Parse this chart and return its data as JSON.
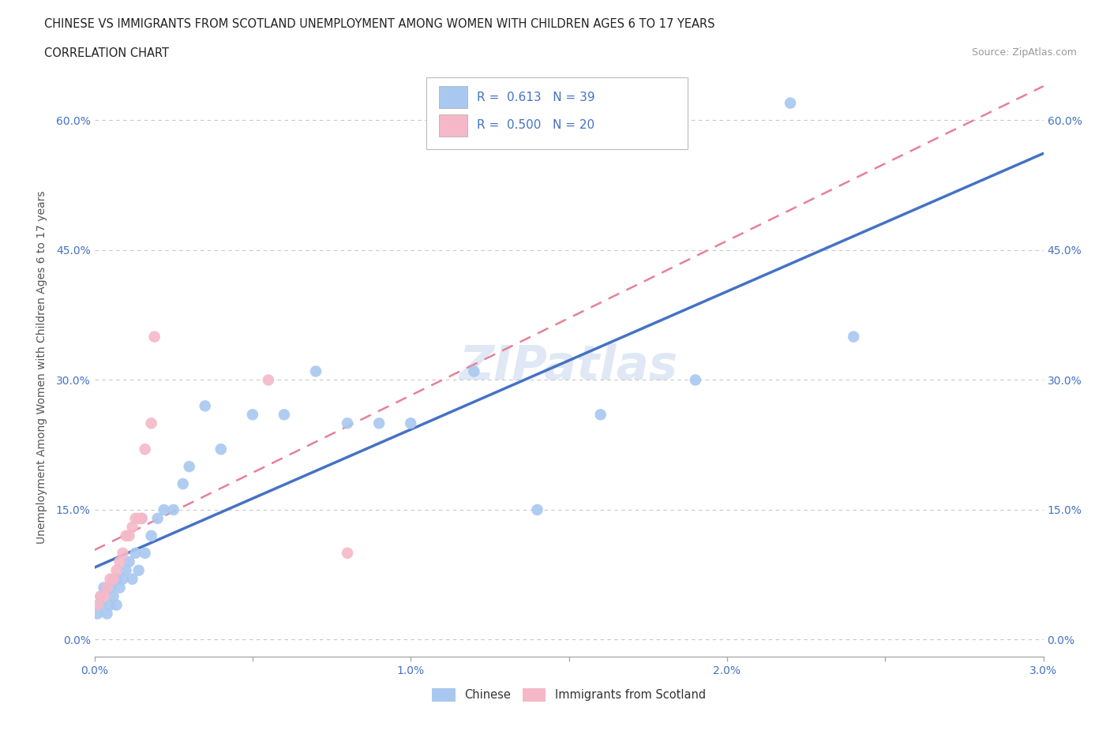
{
  "title_line1": "CHINESE VS IMMIGRANTS FROM SCOTLAND UNEMPLOYMENT AMONG WOMEN WITH CHILDREN AGES 6 TO 17 YEARS",
  "title_line2": "CORRELATION CHART",
  "source_text": "Source: ZipAtlas.com",
  "ylabel": "Unemployment Among Women with Children Ages 6 to 17 years",
  "xlim": [
    0.0,
    0.03
  ],
  "ylim": [
    -0.02,
    0.65
  ],
  "ytick_labels": [
    "0.0%",
    "15.0%",
    "30.0%",
    "45.0%",
    "60.0%"
  ],
  "ytick_values": [
    0.0,
    0.15,
    0.3,
    0.45,
    0.6
  ],
  "xtick_labels": [
    "0.0%",
    "",
    "1.0%",
    "",
    "2.0%",
    "",
    "3.0%"
  ],
  "xtick_values": [
    0.0,
    0.005,
    0.01,
    0.015,
    0.02,
    0.025,
    0.03
  ],
  "chinese_color": "#A8C8F0",
  "scotland_color": "#F5B8C8",
  "chinese_line_color": "#4472C4",
  "scotland_line_color": "#E88098",
  "background_color": "#FFFFFF",
  "grid_color": "#C8C8C8",
  "legend_R1": "R =  0.613",
  "legend_N1": "N = 39",
  "legend_R2": "R =  0.500",
  "legend_N2": "N = 20",
  "legend_label1": "Chinese",
  "legend_label2": "Immigrants from Scotland",
  "watermark": "ZIPatlas",
  "chinese_x": [
    0.0001,
    0.0002,
    0.0002,
    0.0003,
    0.0004,
    0.0005,
    0.0005,
    0.0006,
    0.0007,
    0.0007,
    0.0008,
    0.0009,
    0.001,
    0.0011,
    0.0012,
    0.0013,
    0.0014,
    0.0015,
    0.0016,
    0.0018,
    0.002,
    0.0022,
    0.0025,
    0.0028,
    0.003,
    0.0035,
    0.004,
    0.005,
    0.006,
    0.007,
    0.008,
    0.009,
    0.01,
    0.012,
    0.014,
    0.016,
    0.019,
    0.022,
    0.024
  ],
  "chinese_y": [
    0.03,
    0.04,
    0.05,
    0.06,
    0.03,
    0.04,
    0.06,
    0.05,
    0.04,
    0.07,
    0.06,
    0.07,
    0.08,
    0.09,
    0.07,
    0.1,
    0.08,
    0.14,
    0.1,
    0.12,
    0.14,
    0.15,
    0.15,
    0.18,
    0.2,
    0.27,
    0.22,
    0.26,
    0.26,
    0.31,
    0.25,
    0.25,
    0.25,
    0.31,
    0.15,
    0.26,
    0.3,
    0.62,
    0.35
  ],
  "scotland_x": [
    0.0001,
    0.0002,
    0.0003,
    0.0004,
    0.0005,
    0.0006,
    0.0007,
    0.0008,
    0.0009,
    0.001,
    0.0011,
    0.0012,
    0.0013,
    0.0014,
    0.0015,
    0.0016,
    0.0018,
    0.0019,
    0.0055,
    0.008
  ],
  "scotland_y": [
    0.04,
    0.05,
    0.05,
    0.06,
    0.07,
    0.07,
    0.08,
    0.09,
    0.1,
    0.12,
    0.12,
    0.13,
    0.14,
    0.14,
    0.14,
    0.22,
    0.25,
    0.35,
    0.3,
    0.1
  ]
}
